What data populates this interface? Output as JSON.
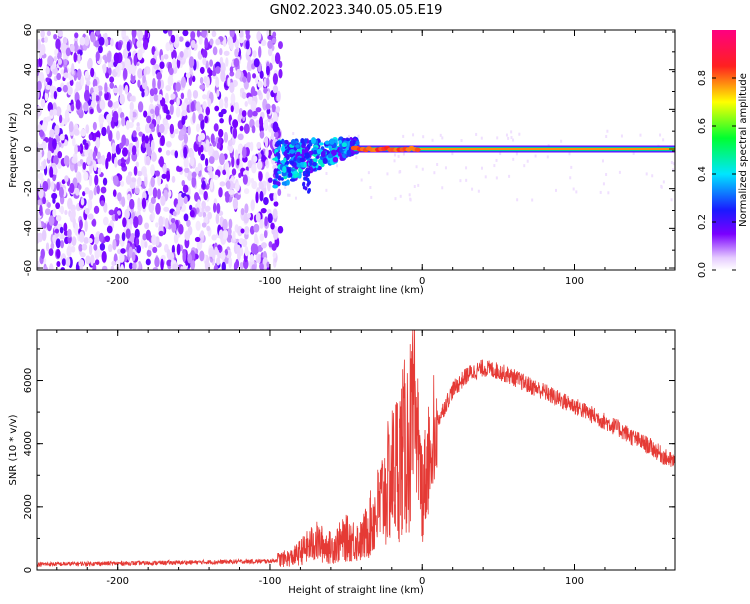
{
  "title": "GN02.2023.340.05.05.E19",
  "chart_data": [
    {
      "type": "heatmap",
      "title": "GN02.2023.340.05.05.E19",
      "xlabel": "Height of straight line (km)",
      "ylabel": "Frequency (Hz)",
      "xlim": [
        -253,
        166
      ],
      "ylim": [
        -61,
        60
      ],
      "x_ticks": [
        -200,
        -100,
        0,
        100
      ],
      "y_ticks": [
        -60,
        -40,
        -20,
        0,
        20,
        40,
        60
      ],
      "grid": false,
      "description_regions": [
        {
          "x_range": [
            -253,
            -93
          ],
          "freq_range": [
            -61,
            60
          ],
          "amplitude": [
            0.0,
            0.15
          ],
          "pattern": "scattered noise"
        },
        {
          "x_range": [
            -97,
            -42
          ],
          "freq_range": [
            -22,
            4
          ],
          "amplitude": [
            0.15,
            0.45
          ],
          "pattern": "turbulent band"
        },
        {
          "x_range": [
            -45,
            166
          ],
          "freq_range": [
            -2,
            2
          ],
          "amplitude": [
            0.6,
            0.95
          ],
          "pattern": "narrow tone near 0 Hz"
        }
      ],
      "colorbar": {
        "label": "Normalized spectral amplitude",
        "range": [
          0.0,
          1.0
        ],
        "ticks": [
          0.0,
          0.2,
          0.4,
          0.6,
          0.8
        ],
        "tick_labels": [
          "0.0",
          "0.2",
          "0.4",
          "0.6",
          "0.8"
        ],
        "colors": [
          "#ffffff",
          "#e6ccff",
          "#7a00ff",
          "#1a1aff",
          "#00e6ff",
          "#00ff30",
          "#ffff00",
          "#ff2020",
          "#ff0080"
        ]
      }
    },
    {
      "type": "line",
      "xlabel": "Height of straight line (km)",
      "ylabel": "SNR (10 * v/v)",
      "xlim": [
        -253,
        166
      ],
      "ylim": [
        0,
        7600
      ],
      "x_ticks": [
        -200,
        -100,
        0,
        100
      ],
      "y_ticks": [
        0,
        2000,
        4000,
        6000
      ],
      "grid": false,
      "color": "#e53a35",
      "series": [
        {
          "x": [
            -253,
            -220,
            -180,
            -140,
            -100,
            -85,
            -70,
            -60,
            -50,
            -40,
            -30,
            -20,
            -10,
            -5,
            0,
            10,
            20,
            30,
            40,
            50,
            60,
            70,
            80,
            90,
            100,
            110,
            120,
            130,
            140,
            150,
            160,
            166
          ],
          "values": [
            180,
            200,
            220,
            250,
            280,
            400,
            900,
            700,
            1000,
            900,
            1800,
            3000,
            4000,
            4500,
            2500,
            4700,
            5700,
            6200,
            6400,
            6300,
            6100,
            5850,
            5650,
            5400,
            5200,
            4950,
            4700,
            4450,
            4150,
            3900,
            3550,
            3400
          ]
        }
      ]
    }
  ]
}
